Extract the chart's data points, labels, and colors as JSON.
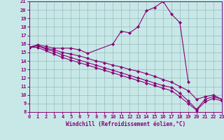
{
  "xlabel": "Windchill (Refroidissement éolien,°C)",
  "bg_color": "#c8e8e8",
  "line_color": "#880077",
  "grid_color": "#99bbbb",
  "xlim": [
    0,
    23
  ],
  "ylim": [
    8,
    21
  ],
  "xticks": [
    0,
    1,
    2,
    3,
    4,
    5,
    6,
    7,
    8,
    9,
    10,
    11,
    12,
    13,
    14,
    15,
    16,
    17,
    18,
    19,
    20,
    21,
    22,
    23
  ],
  "yticks": [
    8,
    9,
    10,
    11,
    12,
    13,
    14,
    15,
    16,
    17,
    18,
    19,
    20,
    21
  ],
  "lines": [
    {
      "x": [
        0,
        1,
        2,
        3,
        4,
        5,
        6,
        7,
        10,
        11,
        12,
        13,
        14,
        15,
        16,
        17,
        18,
        19
      ],
      "y": [
        15.6,
        15.9,
        15.7,
        15.5,
        15.5,
        15.5,
        15.3,
        14.9,
        16.0,
        17.5,
        17.3,
        18.0,
        19.9,
        20.3,
        21.0,
        19.5,
        18.5,
        11.5
      ]
    },
    {
      "x": [
        0,
        1,
        2,
        3,
        4,
        5,
        6,
        7,
        8,
        9,
        10,
        11,
        12,
        13,
        14,
        15,
        16,
        17,
        18,
        19,
        20,
        21,
        22,
        23
      ],
      "y": [
        15.6,
        15.8,
        15.5,
        15.3,
        15.0,
        14.8,
        14.6,
        14.3,
        14.0,
        13.8,
        13.5,
        13.3,
        13.0,
        12.8,
        12.5,
        12.2,
        11.8,
        11.5,
        11.0,
        10.5,
        9.5,
        9.8,
        10.0,
        9.5
      ]
    },
    {
      "x": [
        0,
        1,
        2,
        3,
        4,
        5,
        6,
        7,
        8,
        9,
        10,
        11,
        12,
        13,
        14,
        15,
        16,
        17,
        18,
        19,
        20,
        21,
        22,
        23
      ],
      "y": [
        15.6,
        15.8,
        15.4,
        15.1,
        14.7,
        14.4,
        14.1,
        13.8,
        13.5,
        13.2,
        12.9,
        12.6,
        12.3,
        12.0,
        11.7,
        11.4,
        11.1,
        10.9,
        10.2,
        9.3,
        8.3,
        9.5,
        9.8,
        9.5
      ]
    },
    {
      "x": [
        0,
        1,
        2,
        3,
        4,
        5,
        6,
        7,
        8,
        9,
        10,
        11,
        12,
        13,
        14,
        15,
        16,
        17,
        18,
        19,
        20,
        21,
        22,
        23
      ],
      "y": [
        15.6,
        15.6,
        15.2,
        14.8,
        14.4,
        14.1,
        13.8,
        13.5,
        13.2,
        12.9,
        12.6,
        12.3,
        12.0,
        11.7,
        11.4,
        11.1,
        10.8,
        10.5,
        9.8,
        9.0,
        8.2,
        9.2,
        9.6,
        9.3
      ]
    }
  ]
}
